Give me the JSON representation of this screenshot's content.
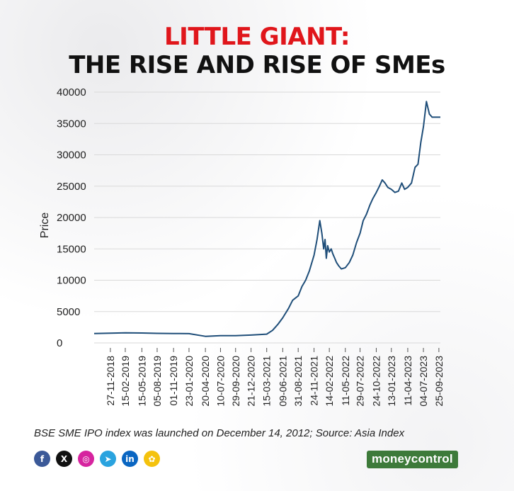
{
  "header": {
    "title_line1": "LITTLE GIANT:",
    "title_line2": "THE RISE AND RISE OF SMEs"
  },
  "chart_data": {
    "type": "line",
    "title": "LITTLE GIANT: THE RISE AND RISE OF SMEs",
    "xlabel": "",
    "ylabel": "Price",
    "ylim": [
      0,
      40000
    ],
    "yticks": [
      0,
      5000,
      10000,
      15000,
      20000,
      25000,
      30000,
      35000,
      40000
    ],
    "xtick_labels": [
      "27-11-2018",
      "15-02-2019",
      "15-05-2019",
      "05-08-2019",
      "01-11-2019",
      "23-01-2020",
      "20-04-2020",
      "10-07-2020",
      "29-09-2020",
      "21-12-2020",
      "15-03-2021",
      "09-06-2021",
      "31-08-2021",
      "24-11-2021",
      "14-02-2022",
      "11-05-2022",
      "29-07-2022",
      "24-10-2022",
      "13-01-2023",
      "11-04-2023",
      "04-07-2023",
      "25-09-2023"
    ],
    "grid": "horizontal",
    "line_color": "#1f4e79",
    "series": [
      {
        "x": [
          "2018-09-01",
          "2018-11-27",
          "2019-02-15",
          "2019-05-15",
          "2019-08-05",
          "2019-11-01",
          "2020-01-23",
          "2020-04-20",
          "2020-07-10",
          "2020-09-29",
          "2020-12-21",
          "2021-03-15",
          "2021-04-15",
          "2021-05-15",
          "2021-06-09",
          "2021-07-10",
          "2021-08-01",
          "2021-08-31",
          "2021-09-20",
          "2021-10-10",
          "2021-10-30",
          "2021-11-24",
          "2021-12-10",
          "2021-12-25",
          "2022-01-05",
          "2022-01-15",
          "2022-01-22",
          "2022-01-29",
          "2022-02-05",
          "2022-02-14",
          "2022-02-24",
          "2022-03-05",
          "2022-03-15",
          "2022-03-25",
          "2022-04-05",
          "2022-04-20",
          "2022-05-11",
          "2022-06-01",
          "2022-06-20",
          "2022-07-10",
          "2022-07-29",
          "2022-08-15",
          "2022-09-01",
          "2022-09-20",
          "2022-10-05",
          "2022-10-24",
          "2022-11-10",
          "2022-11-25",
          "2022-12-10",
          "2022-12-25",
          "2023-01-13",
          "2023-02-01",
          "2023-02-20",
          "2023-03-10",
          "2023-03-25",
          "2023-04-11",
          "2023-05-01",
          "2023-05-20",
          "2023-06-05",
          "2023-06-20",
          "2023-07-04",
          "2023-07-20",
          "2023-08-05",
          "2023-08-20",
          "2023-08-31",
          "2023-09-10",
          "2023-09-18",
          "2023-09-25",
          "2023-10-03"
        ],
        "y": [
          1500,
          1550,
          1600,
          1580,
          1520,
          1500,
          1480,
          1050,
          1150,
          1150,
          1250,
          1400,
          2000,
          3000,
          4000,
          5500,
          6800,
          7500,
          9000,
          10000,
          11500,
          14000,
          16500,
          19500,
          17500,
          15000,
          16500,
          13500,
          15500,
          14500,
          15000,
          14200,
          13500,
          12800,
          12300,
          11800,
          12000,
          12800,
          14000,
          16000,
          17500,
          19500,
          20500,
          22000,
          23000,
          24000,
          25000,
          26000,
          25500,
          24800,
          24500,
          24000,
          24200,
          25500,
          24500,
          24800,
          25500,
          28000,
          28500,
          32000,
          34500,
          38500,
          36500,
          36000,
          36000,
          36000,
          36000,
          36000,
          36000
        ]
      }
    ]
  },
  "footer": {
    "source_text": "BSE SME IPO index was launched on December 14, 2012; Source: Asia Index",
    "brand": "moneycontrol",
    "social_icons": [
      {
        "name": "facebook-icon",
        "glyph": "f",
        "color": "#3b5998"
      },
      {
        "name": "x-twitter-icon",
        "glyph": "X",
        "color": "#111111"
      },
      {
        "name": "instagram-icon",
        "glyph": "◎",
        "color": "#d6249f"
      },
      {
        "name": "telegram-icon",
        "glyph": "➤",
        "color": "#2aa3df"
      },
      {
        "name": "linkedin-icon",
        "glyph": "in",
        "color": "#0a66c2"
      },
      {
        "name": "koo-icon",
        "glyph": "✿",
        "color": "#f4c20d"
      }
    ]
  }
}
